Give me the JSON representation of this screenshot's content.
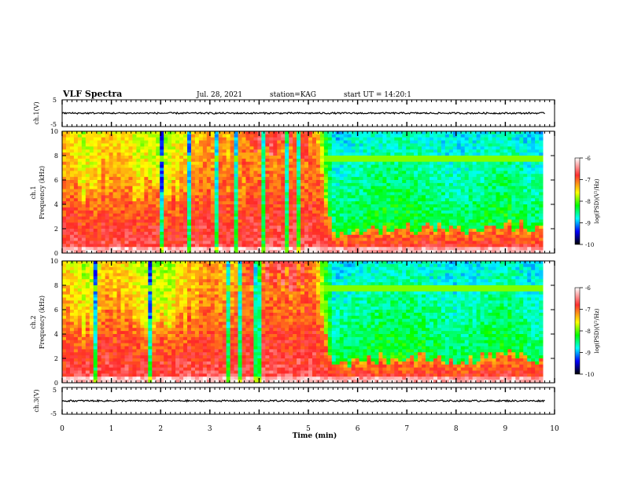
{
  "header": {
    "title": "VLF Spectra",
    "date": "Jul. 28, 2021",
    "station": "station=KAG",
    "start": "start UT =  14:20:1"
  },
  "waveform_labels": {
    "ch1_label": "ch.1(V)",
    "ch3_label": "ch.3(V)",
    "yticks": [
      "5",
      "-5"
    ]
  },
  "spectrogram_labels": {
    "ch1_label": "ch.1",
    "ch2_label": "ch.2",
    "ylabel": "Frequency (kHz)",
    "yticks": [
      "0",
      "2",
      "4",
      "6",
      "8",
      "10"
    ]
  },
  "colorbar": {
    "label": "log(PSD)(V²/Hz)",
    "ticks": [
      "-6",
      "-7",
      "-8",
      "-9",
      "-10"
    ],
    "colors": [
      "#ffffff",
      "#ff2020",
      "#ffff00",
      "#00ff00",
      "#00ffff",
      "#0000ff",
      "#000000"
    ]
  },
  "xaxis": {
    "xlabel": "Time (min)",
    "ticks": [
      "0",
      "1",
      "2",
      "3",
      "4",
      "5",
      "6",
      "7",
      "8",
      "9",
      "10"
    ]
  },
  "chart_data": [
    {
      "type": "line",
      "name": "ch.1 waveform",
      "ylabel": "ch.1(V)",
      "xlabel": "Time (min)",
      "xlim": [
        0,
        10
      ],
      "ylim": [
        -5,
        5
      ],
      "x": [
        0,
        1,
        2,
        3,
        4,
        5,
        6,
        7,
        8,
        9,
        9.8
      ],
      "values": [
        0,
        0,
        0,
        0,
        0,
        0,
        0,
        0,
        0,
        0,
        0
      ]
    },
    {
      "type": "heatmap",
      "name": "ch.1 spectrogram",
      "ylabel": "Frequency (kHz)",
      "xlim": [
        0,
        10
      ],
      "ylim": [
        0,
        10
      ],
      "zlim": [
        -10,
        -6
      ],
      "time_min": [
        0,
        0.5,
        1,
        1.5,
        2,
        2.5,
        3,
        3.5,
        4,
        4.5,
        5,
        5.5,
        6,
        6.5,
        7,
        7.5,
        8,
        8.5,
        9,
        9.5
      ],
      "band_top_khz": [
        6.0,
        5.0,
        6.5,
        5.5,
        4.5,
        6.0,
        7.0,
        6.5,
        10.0,
        10.0,
        10.0,
        1.5,
        1.8,
        2.0,
        2.2,
        2.0,
        1.8,
        2.0,
        2.5,
        2.0
      ],
      "tone_khz": 7.8,
      "level_log_psd": [
        -7.2,
        -7.5,
        -7.2,
        -7.4,
        -7.6,
        -7.3,
        -7.1,
        -7.2,
        -6.6,
        -6.6,
        -6.7,
        -8.4,
        -8.3,
        -8.2,
        -8.2,
        -8.3,
        -8.4,
        -8.3,
        -8.2,
        -8.4
      ]
    },
    {
      "type": "heatmap",
      "name": "ch.2 spectrogram",
      "ylabel": "Frequency (kHz)",
      "xlim": [
        0,
        10
      ],
      "ylim": [
        0,
        10
      ],
      "zlim": [
        -10,
        -6
      ],
      "time_min": [
        0,
        0.5,
        1,
        1.5,
        2,
        2.5,
        3,
        3.5,
        4,
        4.5,
        5,
        5.5,
        6,
        6.5,
        7,
        7.5,
        8,
        8.5,
        9,
        9.5
      ],
      "band_top_khz": [
        6.0,
        5.0,
        6.5,
        5.5,
        4.5,
        6.0,
        7.0,
        6.5,
        10.0,
        10.0,
        10.0,
        1.5,
        1.8,
        2.0,
        2.2,
        2.0,
        1.8,
        2.0,
        2.5,
        2.0
      ],
      "tone_khz": 7.8,
      "level_log_psd": [
        -7.2,
        -7.5,
        -7.2,
        -7.4,
        -7.6,
        -7.3,
        -7.1,
        -7.2,
        -6.6,
        -6.6,
        -6.7,
        -8.4,
        -8.3,
        -8.2,
        -8.2,
        -8.3,
        -8.4,
        -8.3,
        -8.2,
        -8.4
      ]
    },
    {
      "type": "line",
      "name": "ch.3 waveform",
      "ylabel": "ch.3(V)",
      "xlabel": "Time (min)",
      "xlim": [
        0,
        10
      ],
      "ylim": [
        -5,
        5
      ],
      "x": [
        0,
        1,
        2,
        3,
        4,
        5,
        6,
        7,
        8,
        9,
        9.8
      ],
      "values": [
        0,
        0,
        0,
        0,
        0,
        0,
        0,
        0,
        0,
        0,
        0
      ]
    }
  ]
}
